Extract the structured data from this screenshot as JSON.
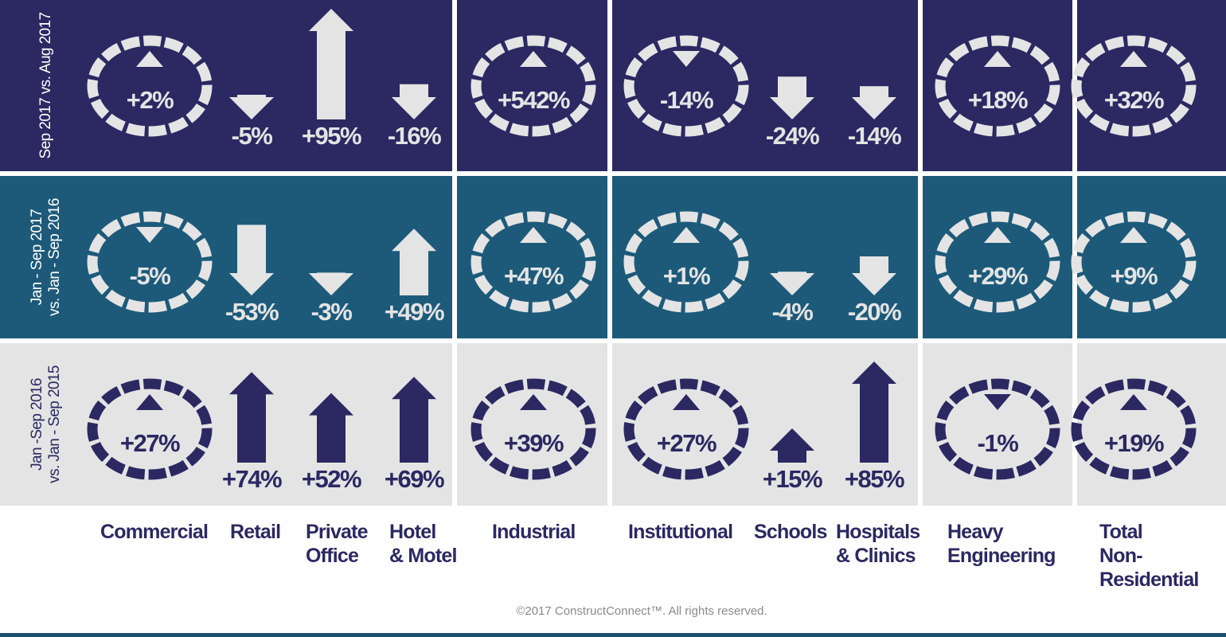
{
  "rows": [
    {
      "label": [
        "Sep 2017 vs. Aug 2017"
      ],
      "cells": [
        {
          "value": 2,
          "label": "+2%"
        },
        {
          "value": -5,
          "label": "-5%"
        },
        {
          "value": 95,
          "label": "+95%"
        },
        {
          "value": -16,
          "label": "-16%"
        },
        {
          "value": 542,
          "label": "+542%"
        },
        {
          "value": -14,
          "label": "-14%"
        },
        {
          "value": -24,
          "label": "-24%"
        },
        {
          "value": -14,
          "label": "-14%"
        },
        {
          "value": 18,
          "label": "+18%"
        },
        {
          "value": 32,
          "label": "+32%"
        }
      ]
    },
    {
      "label": [
        "Jan - Sep 2017",
        "vs. Jan - Sep 2016"
      ],
      "cells": [
        {
          "value": -5,
          "label": "-5%"
        },
        {
          "value": -53,
          "label": "-53%"
        },
        {
          "value": -3,
          "label": "-3%"
        },
        {
          "value": 49,
          "label": "+49%"
        },
        {
          "value": 47,
          "label": "+47%"
        },
        {
          "value": 1,
          "label": "+1%"
        },
        {
          "value": -4,
          "label": "-4%"
        },
        {
          "value": -20,
          "label": "-20%"
        },
        {
          "value": 29,
          "label": "+29%"
        },
        {
          "value": 9,
          "label": "+9%"
        }
      ]
    },
    {
      "label": [
        "Jan -Sep 2016",
        "vs. Jan - Sep 2015"
      ],
      "cells": [
        {
          "value": 27,
          "label": "+27%"
        },
        {
          "value": 74,
          "label": "+74%"
        },
        {
          "value": 52,
          "label": "+52%"
        },
        {
          "value": 69,
          "label": "+69%"
        },
        {
          "value": 39,
          "label": "+39%"
        },
        {
          "value": 27,
          "label": "+27%"
        },
        {
          "value": 15,
          "label": "+15%"
        },
        {
          "value": 85,
          "label": "+85%"
        },
        {
          "value": -1,
          "label": "-1%"
        },
        {
          "value": 19,
          "label": "+19%"
        }
      ]
    }
  ],
  "columns": [
    {
      "label": [
        "Commercial"
      ],
      "style": "ring"
    },
    {
      "label": [
        "Retail"
      ],
      "style": "arrow"
    },
    {
      "label": [
        "Private",
        "Office"
      ],
      "style": "arrow"
    },
    {
      "label": [
        "Hotel",
        "& Motel"
      ],
      "style": "arrow"
    },
    {
      "label": [
        "Industrial"
      ],
      "style": "ring"
    },
    {
      "label": [
        "Institutional"
      ],
      "style": "ring"
    },
    {
      "label": [
        "Schools"
      ],
      "style": "arrow"
    },
    {
      "label": [
        "Hospitals",
        "& Clinics"
      ],
      "style": "arrow"
    },
    {
      "label": [
        "Heavy",
        "Engineering"
      ],
      "style": "ring"
    },
    {
      "label": [
        "Total",
        "Non-",
        "Residential"
      ],
      "style": "ring"
    }
  ],
  "copyright": "©2017 ConstructConnect™. All rights reserved."
}
